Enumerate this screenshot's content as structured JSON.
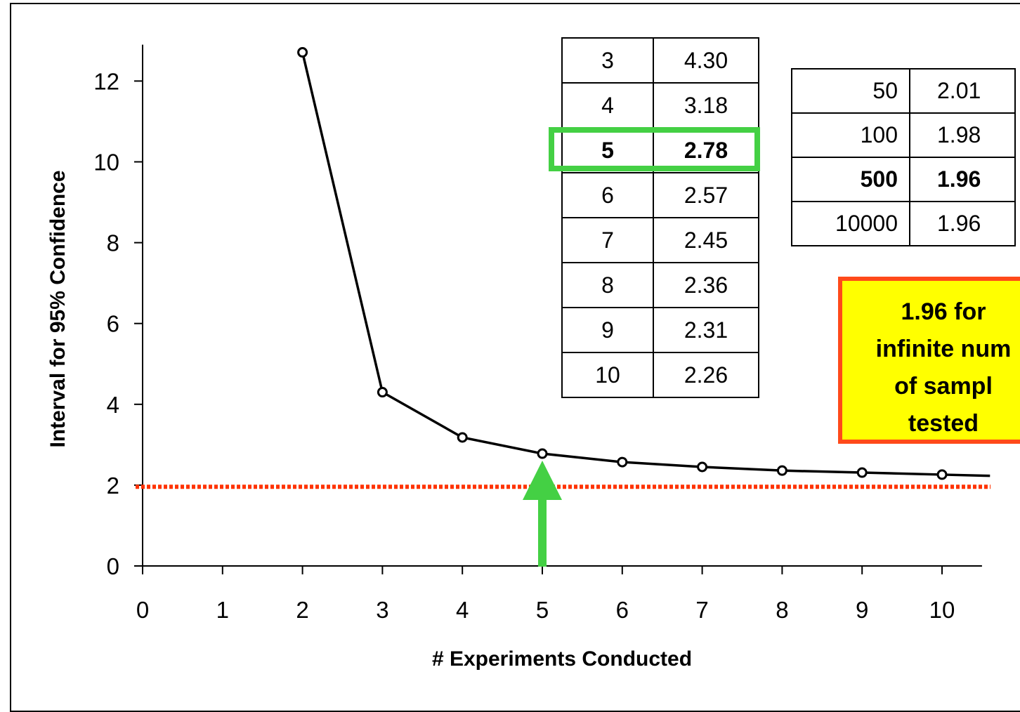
{
  "chart_data": {
    "type": "line",
    "title": "",
    "xlabel": "# Experiments Conducted",
    "ylabel": "Interval for 95% Confidence",
    "xlim": [
      0,
      10.5
    ],
    "ylim": [
      0,
      12.9
    ],
    "x_ticks": [
      "0",
      "1",
      "2",
      "3",
      "4",
      "5",
      "6",
      "7",
      "8",
      "9",
      "10"
    ],
    "y_ticks": [
      "0",
      "2",
      "4",
      "6",
      "8",
      "10",
      "12"
    ],
    "series": [
      {
        "x": [
          2,
          3,
          4,
          5,
          6,
          7,
          8,
          9,
          10,
          10.6
        ],
        "y": [
          12.71,
          4.3,
          3.18,
          2.78,
          2.57,
          2.45,
          2.36,
          2.31,
          2.26,
          2.23
        ],
        "markers_at": [
          2,
          3,
          4,
          5,
          6,
          7,
          8,
          9,
          10
        ],
        "color": "#000000"
      }
    ],
    "reference_line": {
      "y": 1.96,
      "style": "dotted",
      "color": "#ff3300"
    },
    "arrow": {
      "x": 5,
      "color": "#44d044",
      "direction": "up"
    },
    "grid": false,
    "legend": "none"
  },
  "table_small": [
    {
      "n": "3",
      "t": "4.30",
      "bold": false
    },
    {
      "n": "4",
      "t": "3.18",
      "bold": false
    },
    {
      "n": "5",
      "t": "2.78",
      "bold": true
    },
    {
      "n": "6",
      "t": "2.57",
      "bold": false
    },
    {
      "n": "7",
      "t": "2.45",
      "bold": false
    },
    {
      "n": "8",
      "t": "2.36",
      "bold": false
    },
    {
      "n": "9",
      "t": "2.31",
      "bold": false
    },
    {
      "n": "10",
      "t": "2.26",
      "bold": false
    }
  ],
  "table_large": [
    {
      "n": "50",
      "t": "2.01",
      "bold": false
    },
    {
      "n": "100",
      "t": "1.98",
      "bold": false
    },
    {
      "n": "500",
      "t": "1.96",
      "bold": true
    },
    {
      "n": "10000",
      "t": "1.96",
      "bold": false
    }
  ],
  "callout": {
    "text": "1.96 for\ninfinite num\nof sampl\ntested",
    "background": "#ffff00",
    "border": "#ff4a1a"
  },
  "highlight_color": "#44d044"
}
